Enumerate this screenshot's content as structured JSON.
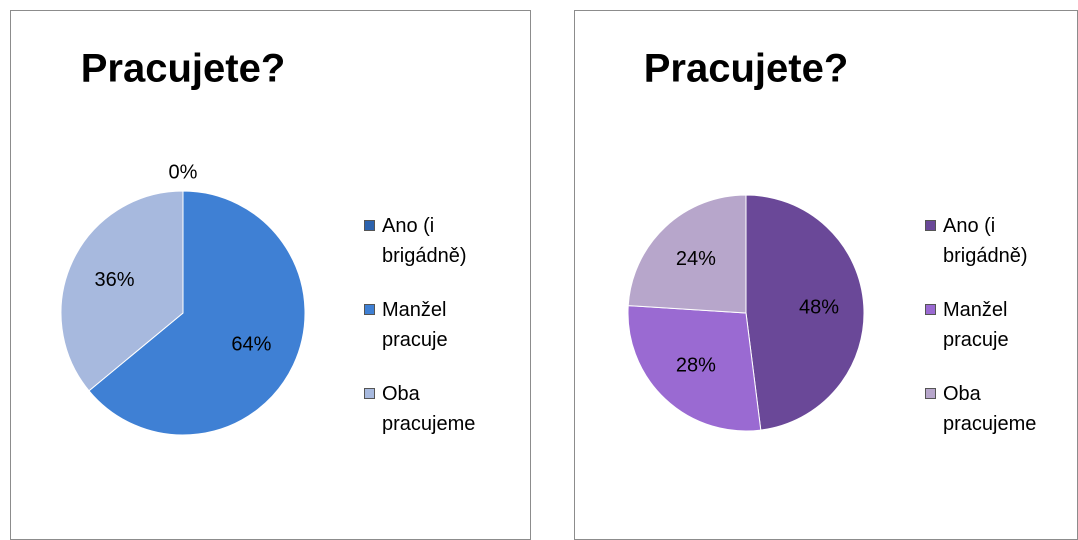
{
  "chart_data": [
    {
      "type": "pie",
      "title": "Pracujete?",
      "categories": [
        "Ano (i brigádně)",
        "Manžel pracuje",
        "Oba pracujeme"
      ],
      "values": [
        0,
        64,
        36
      ],
      "value_labels": [
        "0%",
        "64%",
        "36%"
      ],
      "colors": [
        "#2c62ad",
        "#3f80d4",
        "#a7b9de"
      ]
    },
    {
      "type": "pie",
      "title": "Pracujete?",
      "categories": [
        "Ano (i brigádně)",
        "Manžel pracuje",
        "Oba pracujeme"
      ],
      "values": [
        48,
        28,
        24
      ],
      "value_labels": [
        "48%",
        "28%",
        "24%"
      ],
      "colors": [
        "#6a4898",
        "#9a6ad2",
        "#b7a6cb"
      ]
    }
  ]
}
